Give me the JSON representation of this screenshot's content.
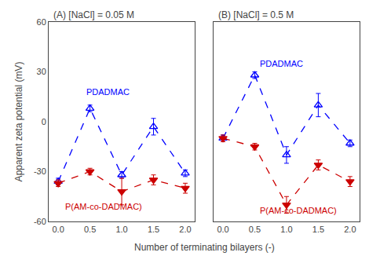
{
  "chart_data": [
    {
      "type": "line",
      "title": "(A) [NaCl] = 0.05 M",
      "xlabel": "Number of terminating bilayers (-)",
      "ylabel": "Apparent zeta potential (mV)",
      "x": [
        0,
        0.5,
        1,
        1.5,
        2
      ],
      "xlim": [
        -0.15,
        2.15
      ],
      "xticks": [
        {
          "value": 0,
          "label": "0.0"
        },
        {
          "value": 0.5,
          "label": "0.5"
        },
        {
          "value": 1,
          "label": "1.0"
        },
        {
          "value": 1.5,
          "label": "1.5"
        },
        {
          "value": 2,
          "label": "2.0"
        }
      ],
      "ylim": [
        -60,
        60
      ],
      "yticks": [
        -60,
        -30,
        0,
        30,
        60
      ],
      "grid": false,
      "series": [
        {
          "color": "#0000ff",
          "marker": "triangle-up-open",
          "line_style": "dashed",
          "values": [
            -36,
            8,
            -32,
            -3,
            -31
          ],
          "errors": [
            2,
            2,
            2,
            5,
            2
          ]
        },
        {
          "color": "#cc0000",
          "marker": "triangle-down",
          "line_style": "dashed",
          "values": [
            -37,
            -30,
            -42,
            -35,
            -40
          ],
          "errors": [
            2,
            2,
            8,
            3,
            3
          ]
        }
      ],
      "annotations": [
        {
          "text": "PDADMAC",
          "x": 0.42,
          "y": 14,
          "color": "#0000ff"
        },
        {
          "text": "P(AM-co-DADMAC)",
          "x": 0.08,
          "y": -55,
          "color": "#cc0000"
        }
      ]
    },
    {
      "type": "line",
      "title": "(B) [NaCl] = 0.5 M",
      "x": [
        0,
        0.5,
        1,
        1.5,
        2
      ],
      "xlim": [
        -0.15,
        2.15
      ],
      "xticks": [
        {
          "value": 0,
          "label": "0.0"
        },
        {
          "value": 0.5,
          "label": "0.5"
        },
        {
          "value": 1,
          "label": "1.0"
        },
        {
          "value": 1.5,
          "label": "1.5"
        },
        {
          "value": 2,
          "label": "2.0"
        }
      ],
      "ylim": [
        -60,
        60
      ],
      "yticks": [
        -60,
        -30,
        0,
        30,
        60
      ],
      "grid": false,
      "tick_labels": "x",
      "series": [
        {
          "color": "#0000ff",
          "marker": "triangle-up-open",
          "line_style": "dashed",
          "values": [
            -10,
            28,
            -20,
            10,
            -13
          ],
          "errors": [
            2,
            2,
            5,
            7,
            2
          ]
        },
        {
          "color": "#cc0000",
          "marker": "triangle-down",
          "line_style": "dashed",
          "values": [
            -10,
            -15,
            -50,
            -26,
            -36
          ],
          "errors": [
            2,
            2,
            5,
            3,
            3
          ]
        }
      ],
      "annotations": [
        {
          "text": "PDADMAC",
          "x": 0.55,
          "y": 31,
          "color": "#0000ff"
        },
        {
          "text": "P(AM-co-DADMAC)",
          "x": 0.55,
          "y": -57,
          "color": "#cc0000"
        }
      ]
    }
  ]
}
